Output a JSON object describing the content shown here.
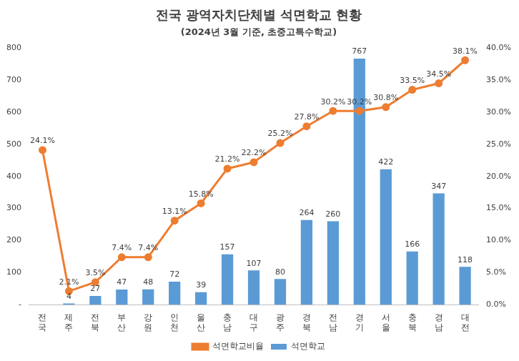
{
  "chart_data": {
    "type": "bar",
    "title": "전국 광역자치단체별 석면학교 현황",
    "subtitle": "(2024년 3월 기준, 초중고특수학교)",
    "categories": [
      "전국",
      "제주",
      "전북",
      "부산",
      "강원",
      "인천",
      "울산",
      "충남",
      "대구",
      "광주",
      "경북",
      "전남",
      "경기",
      "서울",
      "충북",
      "경남",
      "대전"
    ],
    "series": [
      {
        "name": "석면학교",
        "type": "bar",
        "color": "#5b9bd5",
        "values": [
          null,
          4,
          27,
          47,
          48,
          72,
          39,
          157,
          107,
          80,
          264,
          260,
          767,
          422,
          166,
          347,
          118
        ]
      },
      {
        "name": "석면학교비율",
        "type": "line",
        "axis": "y2",
        "color": "#ed7d31",
        "marker": "circle",
        "values": [
          24.1,
          2.1,
          3.5,
          7.4,
          7.4,
          13.1,
          15.8,
          21.2,
          22.2,
          25.2,
          27.8,
          30.2,
          30.2,
          30.8,
          33.5,
          34.5,
          38.1
        ],
        "value_labels": [
          "24.1%",
          "2.1%",
          "3.5%",
          "7.4%",
          "7.4%",
          "13.1%",
          "15.8%",
          "21.2%",
          "22.2%",
          "25.2%",
          "27.8%",
          "30.2%",
          "30.2%",
          "30.8%",
          "33.5%",
          "34.5%",
          "38.1%"
        ]
      }
    ],
    "ylim": [
      0,
      800
    ],
    "yticks": [
      {
        "value": 0,
        "label": "-"
      },
      100,
      200,
      300,
      400,
      500,
      600,
      700,
      800
    ],
    "y2lim": [
      0,
      40
    ],
    "y2ticks": [
      {
        "value": 0,
        "label": "0.0%"
      },
      {
        "value": 5,
        "label": "5.0%"
      },
      {
        "value": 10,
        "label": "10.0%"
      },
      {
        "value": 15,
        "label": "15.0%"
      },
      {
        "value": 20,
        "label": "20.0%"
      },
      {
        "value": 25,
        "label": "25.0%"
      },
      {
        "value": 30,
        "label": "30.0%"
      },
      {
        "value": 35,
        "label": "35.0%"
      },
      {
        "value": 40,
        "label": "40.0%"
      }
    ],
    "grid": false,
    "legend": "bottom",
    "data_labels": true
  }
}
